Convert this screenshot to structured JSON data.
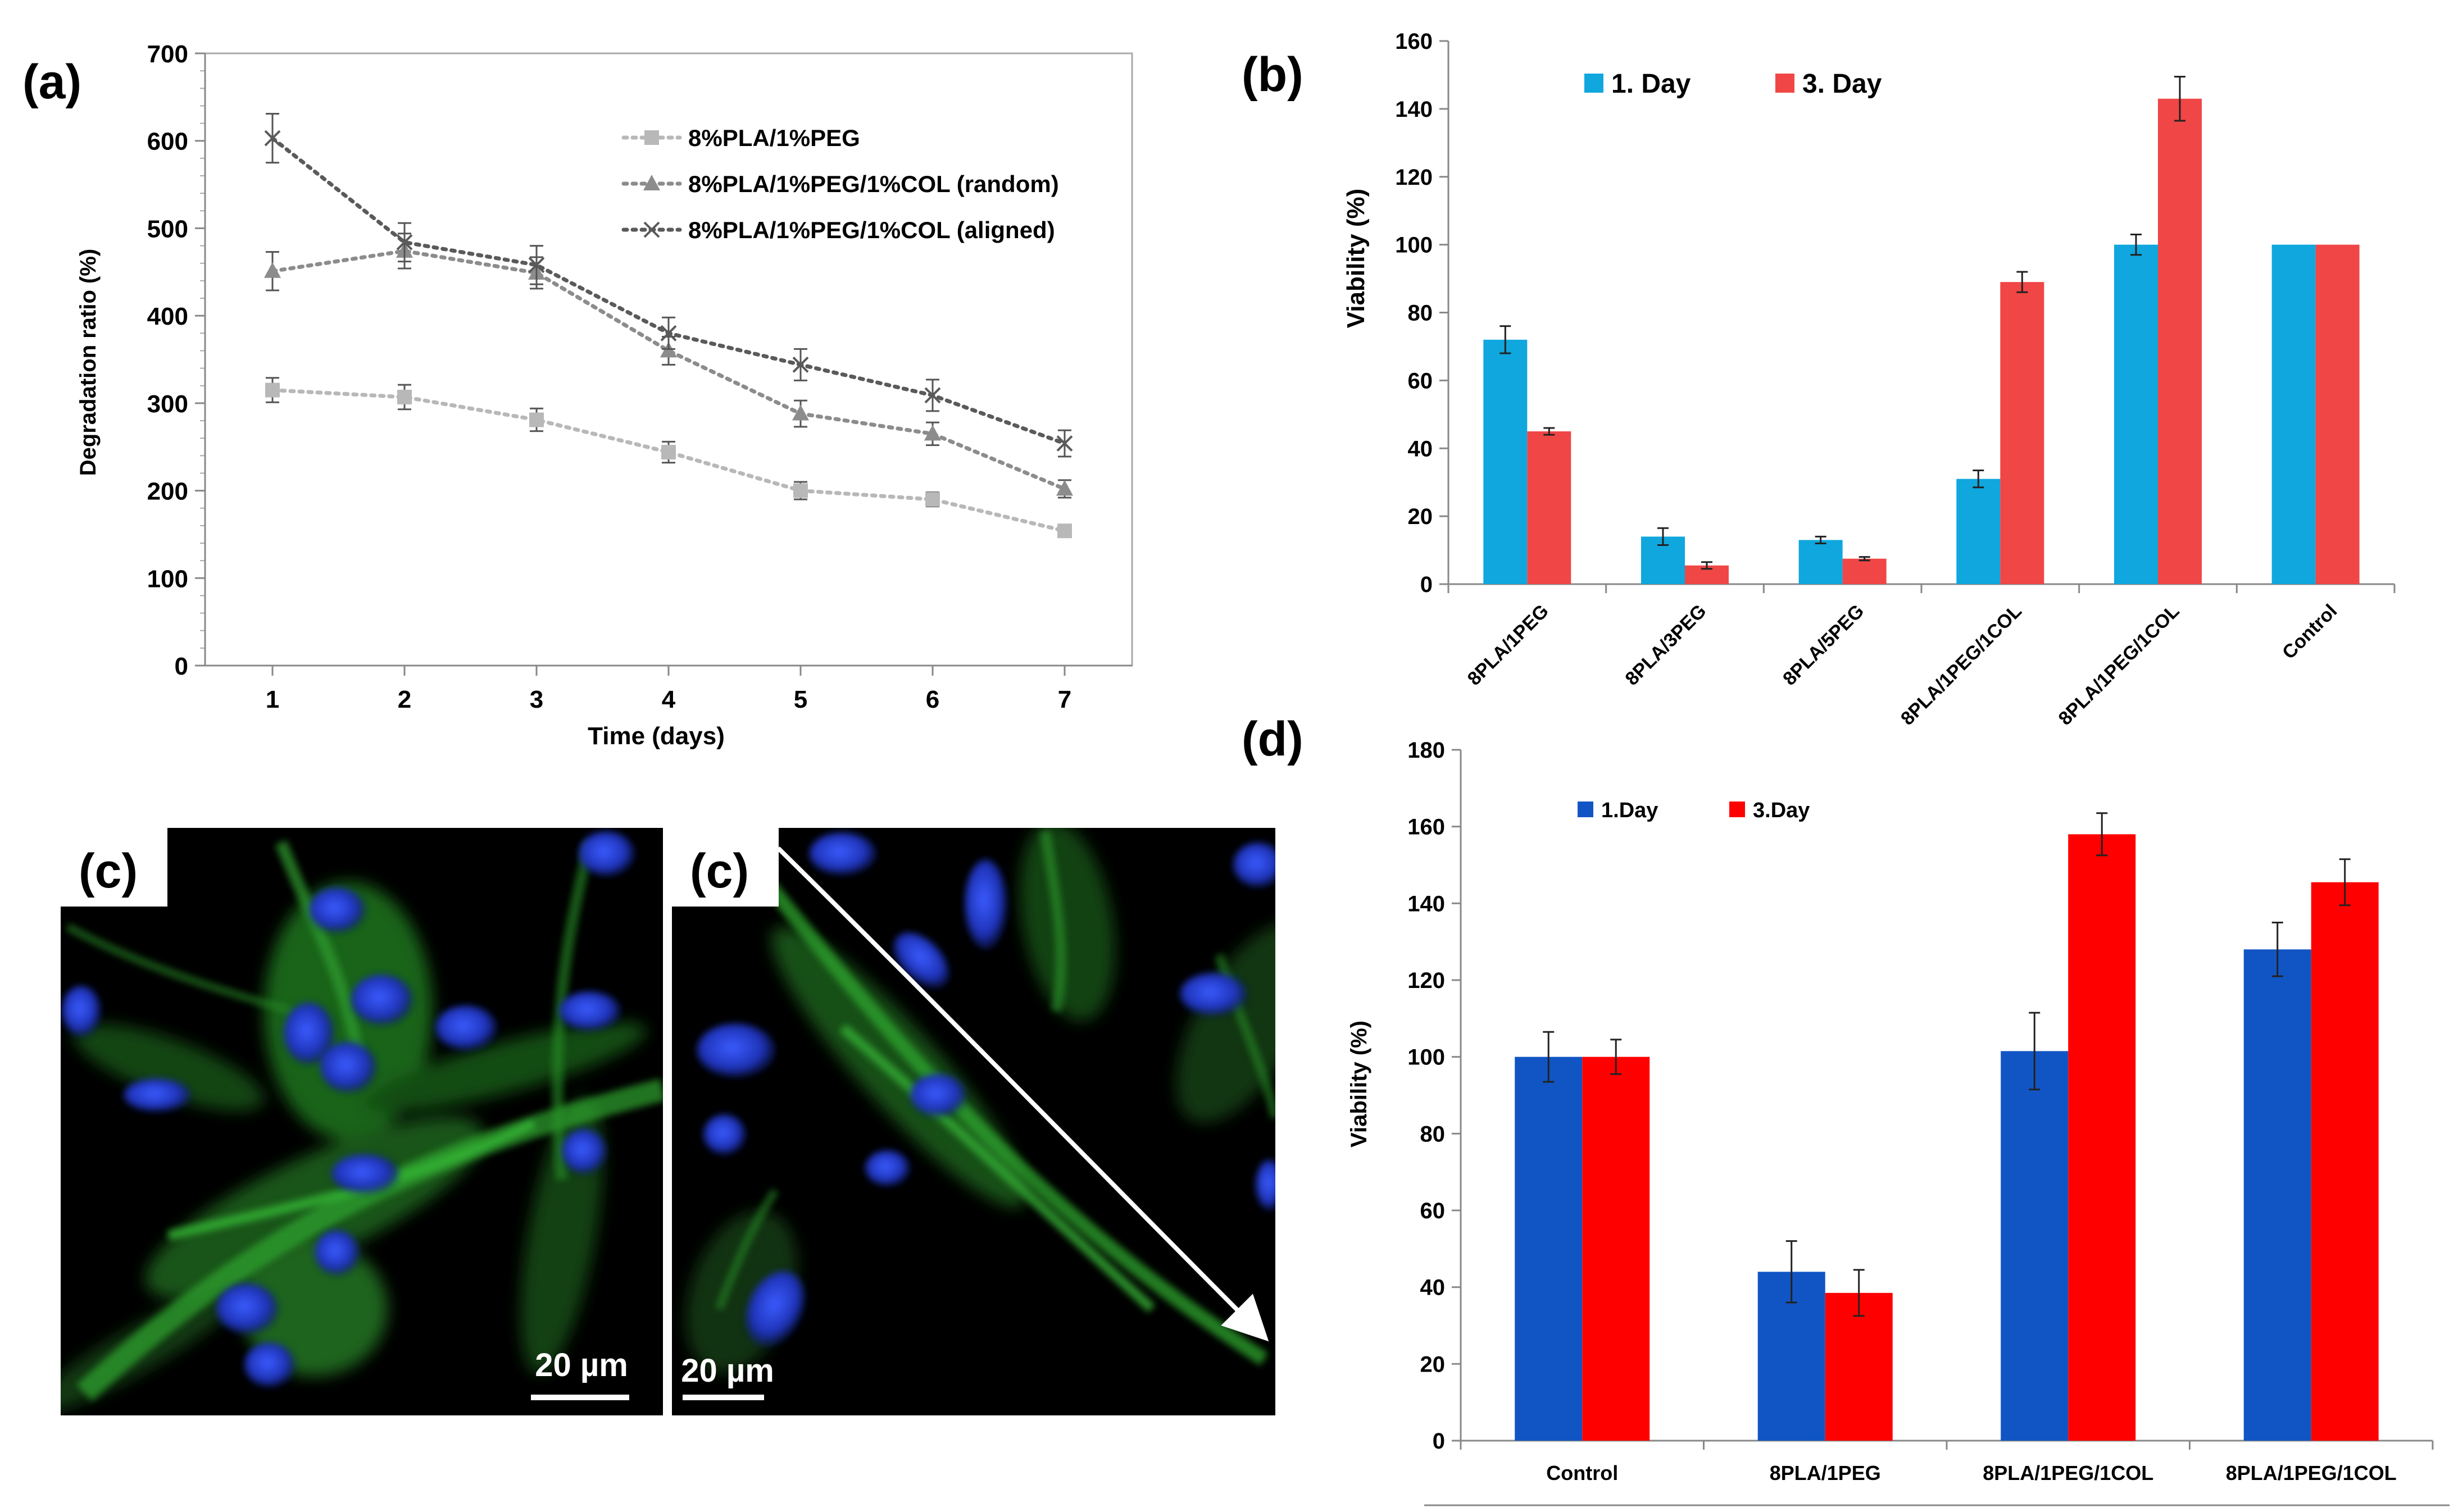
{
  "chart_data": [
    {
      "panel": "(a)",
      "type": "line",
      "xlabel": "Time (days)",
      "ylabel": "Degradation ratio (%)",
      "x": [
        1,
        2,
        3,
        4,
        5,
        6,
        7
      ],
      "ylim": [
        0,
        700
      ],
      "yticks": [
        0,
        100,
        200,
        300,
        400,
        500,
        600,
        700
      ],
      "series": [
        {
          "name": "8%PLA/1%PEG",
          "marker": "square",
          "color": "#b8b8b8",
          "values": [
            315,
            307,
            281,
            244,
            200,
            190,
            154
          ],
          "errors": [
            14,
            14,
            13,
            12,
            10,
            8,
            5
          ]
        },
        {
          "name": "8%PLA/1%PEG/1%COL (random)",
          "marker": "triangle",
          "color": "#8c8c8c",
          "values": [
            451,
            474,
            449,
            360,
            288,
            265,
            202
          ],
          "errors": [
            22,
            20,
            18,
            16,
            15,
            13,
            10
          ]
        },
        {
          "name": "8%PLA/1%PEG/1%COL (aligned)",
          "marker": "x",
          "color": "#5a5a5a",
          "values": [
            603,
            484,
            458,
            380,
            344,
            309,
            254
          ],
          "errors": [
            28,
            22,
            22,
            18,
            18,
            18,
            15
          ]
        }
      ]
    },
    {
      "panel": "(b)",
      "type": "bar",
      "ylabel": "Viability (%)",
      "ylim": [
        0,
        160
      ],
      "yticks": [
        0,
        20,
        40,
        60,
        80,
        100,
        120,
        140,
        160
      ],
      "categories": [
        "8PLA/1PEG",
        "8PLA/3PEG",
        "8PLA/5PEG",
        "8PLA/1PEG/1COL",
        "8PLA/1PEG/1COL",
        "Control"
      ],
      "series": [
        {
          "name": "1. Day",
          "color": "#0fa7de",
          "values": [
            72,
            14,
            13,
            31,
            100,
            100
          ],
          "errors": [
            4,
            2.5,
            1,
            2.5,
            3,
            0
          ]
        },
        {
          "name": "3. Day",
          "color": "#f04646",
          "values": [
            45,
            5.5,
            7.5,
            89,
            143,
            100
          ],
          "errors": [
            1,
            1,
            0.5,
            3,
            6.5,
            0
          ]
        }
      ]
    },
    {
      "panel": "(d)",
      "type": "bar",
      "ylabel": "Viability (%)",
      "ylim": [
        0,
        180
      ],
      "yticks": [
        0,
        20,
        40,
        60,
        80,
        100,
        120,
        140,
        160,
        180
      ],
      "categories": [
        "Control",
        "8PLA/1PEG",
        "8PLA/1PEG/1COL",
        "8PLA/1PEG/1COL"
      ],
      "series": [
        {
          "name": "1.Day",
          "color": "#1155c4",
          "values": [
            100,
            44,
            101.5,
            128
          ],
          "errors": [
            6.5,
            8,
            10,
            7
          ]
        },
        {
          "name": "3.Day",
          "color": "#ff0000",
          "values": [
            100,
            38.5,
            158,
            145.5
          ],
          "errors": [
            4.5,
            6,
            5.5,
            6
          ]
        }
      ]
    }
  ],
  "panels": {
    "a": {
      "label": "(a)"
    },
    "b": {
      "label": "(b)"
    },
    "d": {
      "label": "(d)"
    },
    "c1": {
      "label": "(c)",
      "scale_bar": "20 µm"
    },
    "c2": {
      "label": "(c)",
      "scale_bar": "20 µm"
    }
  }
}
